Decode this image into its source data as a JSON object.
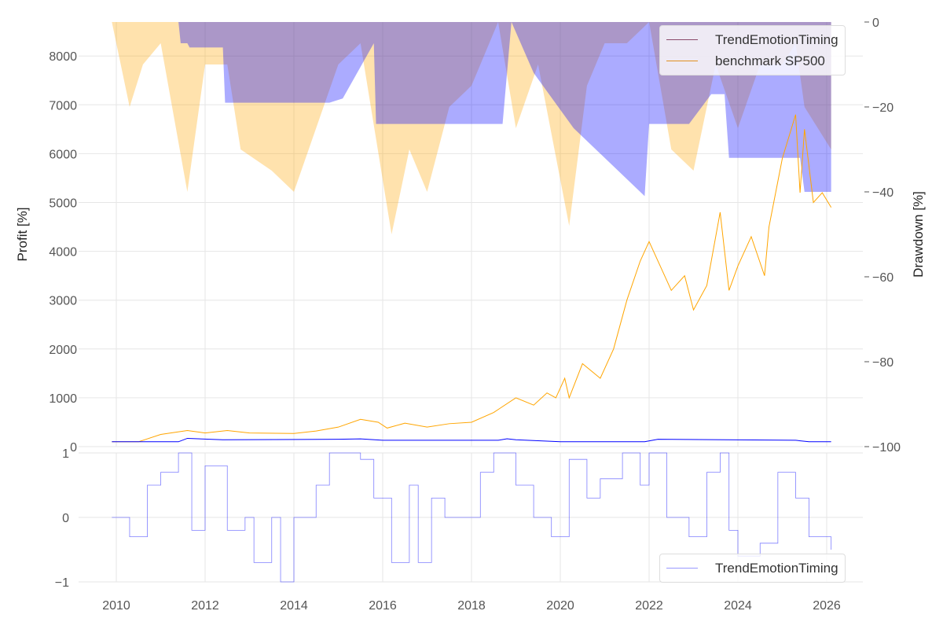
{
  "chart_data": [
    {
      "type": "line",
      "title": "",
      "ylabel": "Profit [%]",
      "y2label": "Drawdown [%]",
      "ylim": [
        0,
        8700
      ],
      "y2lim": [
        -100,
        0
      ],
      "xlim": [
        2009.1,
        2026.8
      ],
      "x_ticks": [
        "2010",
        "2012",
        "2014",
        "2016",
        "2018",
        "2020",
        "2022",
        "2024",
        "2026"
      ],
      "y_ticks": [
        "0",
        "1000",
        "2000",
        "3000",
        "4000",
        "5000",
        "6000",
        "7000",
        "8000"
      ],
      "y2_ticks": [
        "0",
        "−20",
        "−40",
        "−60",
        "−80",
        "−100"
      ],
      "legend": {
        "placement": "top-right",
        "entries": [
          "TrendEmotionTiming",
          "benchmark SP500"
        ]
      },
      "colors": {
        "strategy": "#0000ff",
        "benchmark": "#ffa500",
        "strategy_dd": "#0000ff",
        "benchmark_dd": "#ffa500"
      },
      "series": [
        {
          "name": "benchmark SP500",
          "x": [
            2009.9,
            2010.5,
            2011,
            2011.6,
            2012,
            2012.5,
            2013,
            2014,
            2014.5,
            2015,
            2015.5,
            2015.9,
            2016.1,
            2016.5,
            2017,
            2017.5,
            2018,
            2018.5,
            2019,
            2019.4,
            2019.7,
            2019.9,
            2020.1,
            2020.2,
            2020.5,
            2020.9,
            2021.2,
            2021.5,
            2021.8,
            2022,
            2022.2,
            2022.5,
            2022.8,
            2023,
            2023.3,
            2023.6,
            2023.8,
            2024,
            2024.3,
            2024.6,
            2024.7,
            2025,
            2025.3,
            2025.4,
            2025.5,
            2025.7,
            2025.9,
            2026.1
          ],
          "y": [
            100,
            100,
            250,
            330,
            280,
            330,
            280,
            270,
            320,
            400,
            560,
            500,
            380,
            480,
            400,
            470,
            500,
            700,
            1000,
            850,
            1100,
            1000,
            1400,
            1000,
            1700,
            1400,
            2000,
            3000,
            3800,
            4200,
            3800,
            3200,
            3500,
            2800,
            3300,
            4800,
            3200,
            3700,
            4300,
            3500,
            4500,
            5900,
            6800,
            5200,
            6500,
            5000,
            5200,
            4900
          ]
        },
        {
          "name": "TrendEmotionTiming",
          "x": [
            2009.9,
            2011.4,
            2011.6,
            2012.4,
            2015,
            2015.5,
            2016,
            2018.6,
            2018.8,
            2019,
            2020,
            2021.9,
            2022.2,
            2025.3,
            2025.6,
            2026.1
          ],
          "y": [
            100,
            100,
            170,
            140,
            150,
            160,
            130,
            130,
            160,
            140,
            100,
            100,
            150,
            130,
            100,
            100
          ]
        },
        {
          "name": "TrendEmotionTiming drawdown",
          "axis": "right",
          "x": [
            2011.4,
            2011.45,
            2011.6,
            2011.65,
            2012.4,
            2012.45,
            2014.8,
            2015.1,
            2015.8,
            2015.85,
            2018.7,
            2018.9,
            2019.4,
            2020.3,
            2021.9,
            2022,
            2022.9,
            2023.4,
            2023.7,
            2023.8,
            2025.4,
            2025.5,
            2026.1
          ],
          "y": [
            0,
            -5,
            -5,
            -6,
            -6,
            -19,
            -19,
            -18,
            -5,
            -24,
            -24,
            0,
            -12,
            -25,
            -41,
            -24,
            -24,
            -17,
            -17,
            -32,
            -32,
            -40,
            -40
          ]
        },
        {
          "name": "benchmark SP500 drawdown",
          "axis": "right",
          "x": [
            2009.9,
            2010.3,
            2010.6,
            2011,
            2011.6,
            2012,
            2012.5,
            2012.8,
            2013.5,
            2014,
            2014.5,
            2015,
            2015.5,
            2016.2,
            2016.6,
            2017,
            2017.5,
            2018,
            2018.6,
            2019,
            2019.5,
            2020.2,
            2020.6,
            2021,
            2021.5,
            2022,
            2022.5,
            2023,
            2023.5,
            2024,
            2024.5,
            2025,
            2025.3,
            2025.5,
            2026.1
          ],
          "y": [
            0,
            -20,
            -10,
            -5,
            -40,
            -10,
            -10,
            -30,
            -35,
            -40,
            -25,
            -10,
            -5,
            -50,
            -30,
            -40,
            -20,
            -15,
            0,
            -25,
            -10,
            -48,
            -15,
            -5,
            -5,
            0,
            -30,
            -35,
            -10,
            -25,
            -10,
            -10,
            -5,
            -20,
            -30
          ]
        }
      ]
    },
    {
      "type": "line",
      "ylim": [
        -1,
        1
      ],
      "y_ticks": [
        "1",
        "0",
        "−1"
      ],
      "legend": {
        "placement": "bottom-right",
        "entries": [
          "TrendEmotionTiming"
        ]
      },
      "series": [
        {
          "name": "TrendEmotionTiming",
          "x": [
            2009.9,
            2010.3,
            2010.7,
            2011,
            2011.4,
            2011.7,
            2012,
            2012.5,
            2012.9,
            2013.1,
            2013.5,
            2013.7,
            2014,
            2014.5,
            2014.8,
            2015.5,
            2015.8,
            2016.2,
            2016.6,
            2016.8,
            2017.1,
            2017.4,
            2018,
            2018.2,
            2018.5,
            2019,
            2019.4,
            2019.8,
            2020.2,
            2020.6,
            2020.9,
            2021.4,
            2021.8,
            2022,
            2022.4,
            2022.9,
            2023.3,
            2023.6,
            2023.8,
            2024,
            2024.5,
            2024.9,
            2025.3,
            2025.6,
            2026.1
          ],
          "y": [
            0,
            -0.3,
            0.5,
            0.7,
            1,
            -0.2,
            0.8,
            -0.2,
            0,
            -0.7,
            0,
            -1,
            0,
            0.5,
            1,
            0.9,
            0.3,
            -0.7,
            0.5,
            -0.7,
            0.3,
            0,
            0,
            0.7,
            1,
            0.5,
            0,
            -0.3,
            0.9,
            0.3,
            0.6,
            1,
            0.5,
            1,
            0,
            -0.3,
            0.7,
            1,
            -0.2,
            -0.6,
            -0.4,
            0.7,
            0.3,
            -0.3,
            -0.5
          ]
        }
      ]
    }
  ]
}
